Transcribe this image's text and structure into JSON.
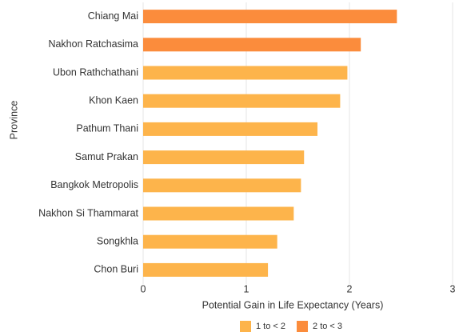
{
  "chart_data": {
    "type": "hbar",
    "y_label": "Province",
    "x_label": "Potential Gain in Life Expectancy (Years)",
    "categories": [
      "Chiang Mai",
      "Nakhon Ratchasima",
      "Ubon Rathchathani",
      "Khon Kaen",
      "Pathum Thani",
      "Samut Prakan",
      "Bangkok Metropolis",
      "Nakhon Si Thammarat",
      "Songkhla",
      "Chon Buri"
    ],
    "values": [
      2.46,
      2.11,
      1.98,
      1.91,
      1.69,
      1.56,
      1.53,
      1.46,
      1.3,
      1.21
    ],
    "colors": [
      "#fb8c3c",
      "#fb8c3c",
      "#fdb44b",
      "#fdb44b",
      "#fdb44b",
      "#fdb44b",
      "#fdb44b",
      "#fdb44b",
      "#fdb44b",
      "#fdb44b"
    ],
    "legend": [
      {
        "name": "1 to < 2",
        "color": "#fdb44b"
      },
      {
        "name": "2 to < 3",
        "color": "#fb8c3c"
      }
    ],
    "xlim": [
      0,
      3
    ],
    "xticks": [
      0,
      1,
      2,
      3
    ],
    "grid": true
  }
}
